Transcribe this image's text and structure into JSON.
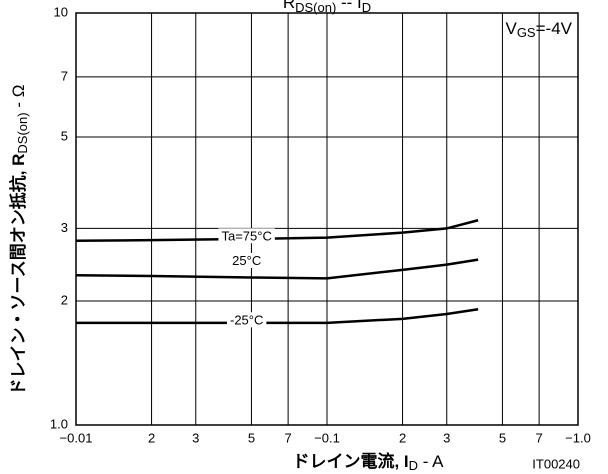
{
  "chart_data": {
    "type": "line",
    "title": {
      "main": "R",
      "sub1": "DS(on)",
      "mid": " -- I",
      "sub2": "D"
    },
    "y_label": {
      "main": "ドレイン・ソース間オン抵抗, R",
      "sub": "DS(on)",
      "tail": " - Ω"
    },
    "x_label": {
      "main": "ドレイン電流, I",
      "sub": "D",
      "tail": " - A"
    },
    "annotation": {
      "main": "V",
      "sub": "GS",
      "tail": "=-4V"
    },
    "figure_id": "IT00240",
    "x_scale": "log",
    "y_scale": "log",
    "grid": true,
    "x": [
      -0.01,
      -0.02,
      -0.05,
      -0.1,
      -0.2,
      -0.3,
      -0.4
    ],
    "series": [
      {
        "name": "Ta=75°C",
        "color": "#000000",
        "values": [
          2.8,
          2.81,
          2.83,
          2.85,
          2.93,
          3.0,
          3.14
        ]
      },
      {
        "name": "25°C",
        "color": "#000000",
        "values": [
          2.31,
          2.3,
          2.28,
          2.27,
          2.38,
          2.45,
          2.52
        ]
      },
      {
        "name": "-25°C",
        "color": "#000000",
        "values": [
          1.77,
          1.77,
          1.77,
          1.77,
          1.81,
          1.86,
          1.91
        ]
      }
    ],
    "xlim": [
      -0.01,
      -1.0
    ],
    "xticks": [
      {
        "value": -0.01,
        "label": "−0.01"
      },
      {
        "value": -0.02,
        "label": "2"
      },
      {
        "value": -0.03,
        "label": "3"
      },
      {
        "value": -0.05,
        "label": "5"
      },
      {
        "value": -0.07,
        "label": "7"
      },
      {
        "value": -0.1,
        "label": "−0.1"
      },
      {
        "value": -0.2,
        "label": "2"
      },
      {
        "value": -0.3,
        "label": "3"
      },
      {
        "value": -0.5,
        "label": "5"
      },
      {
        "value": -0.7,
        "label": "7"
      },
      {
        "value": -1.0,
        "label": "−1.0"
      }
    ],
    "ylim": [
      1.0,
      10
    ],
    "yticks": [
      {
        "value": 1.0,
        "label": "1.0"
      },
      2,
      3,
      5,
      7,
      10
    ]
  }
}
